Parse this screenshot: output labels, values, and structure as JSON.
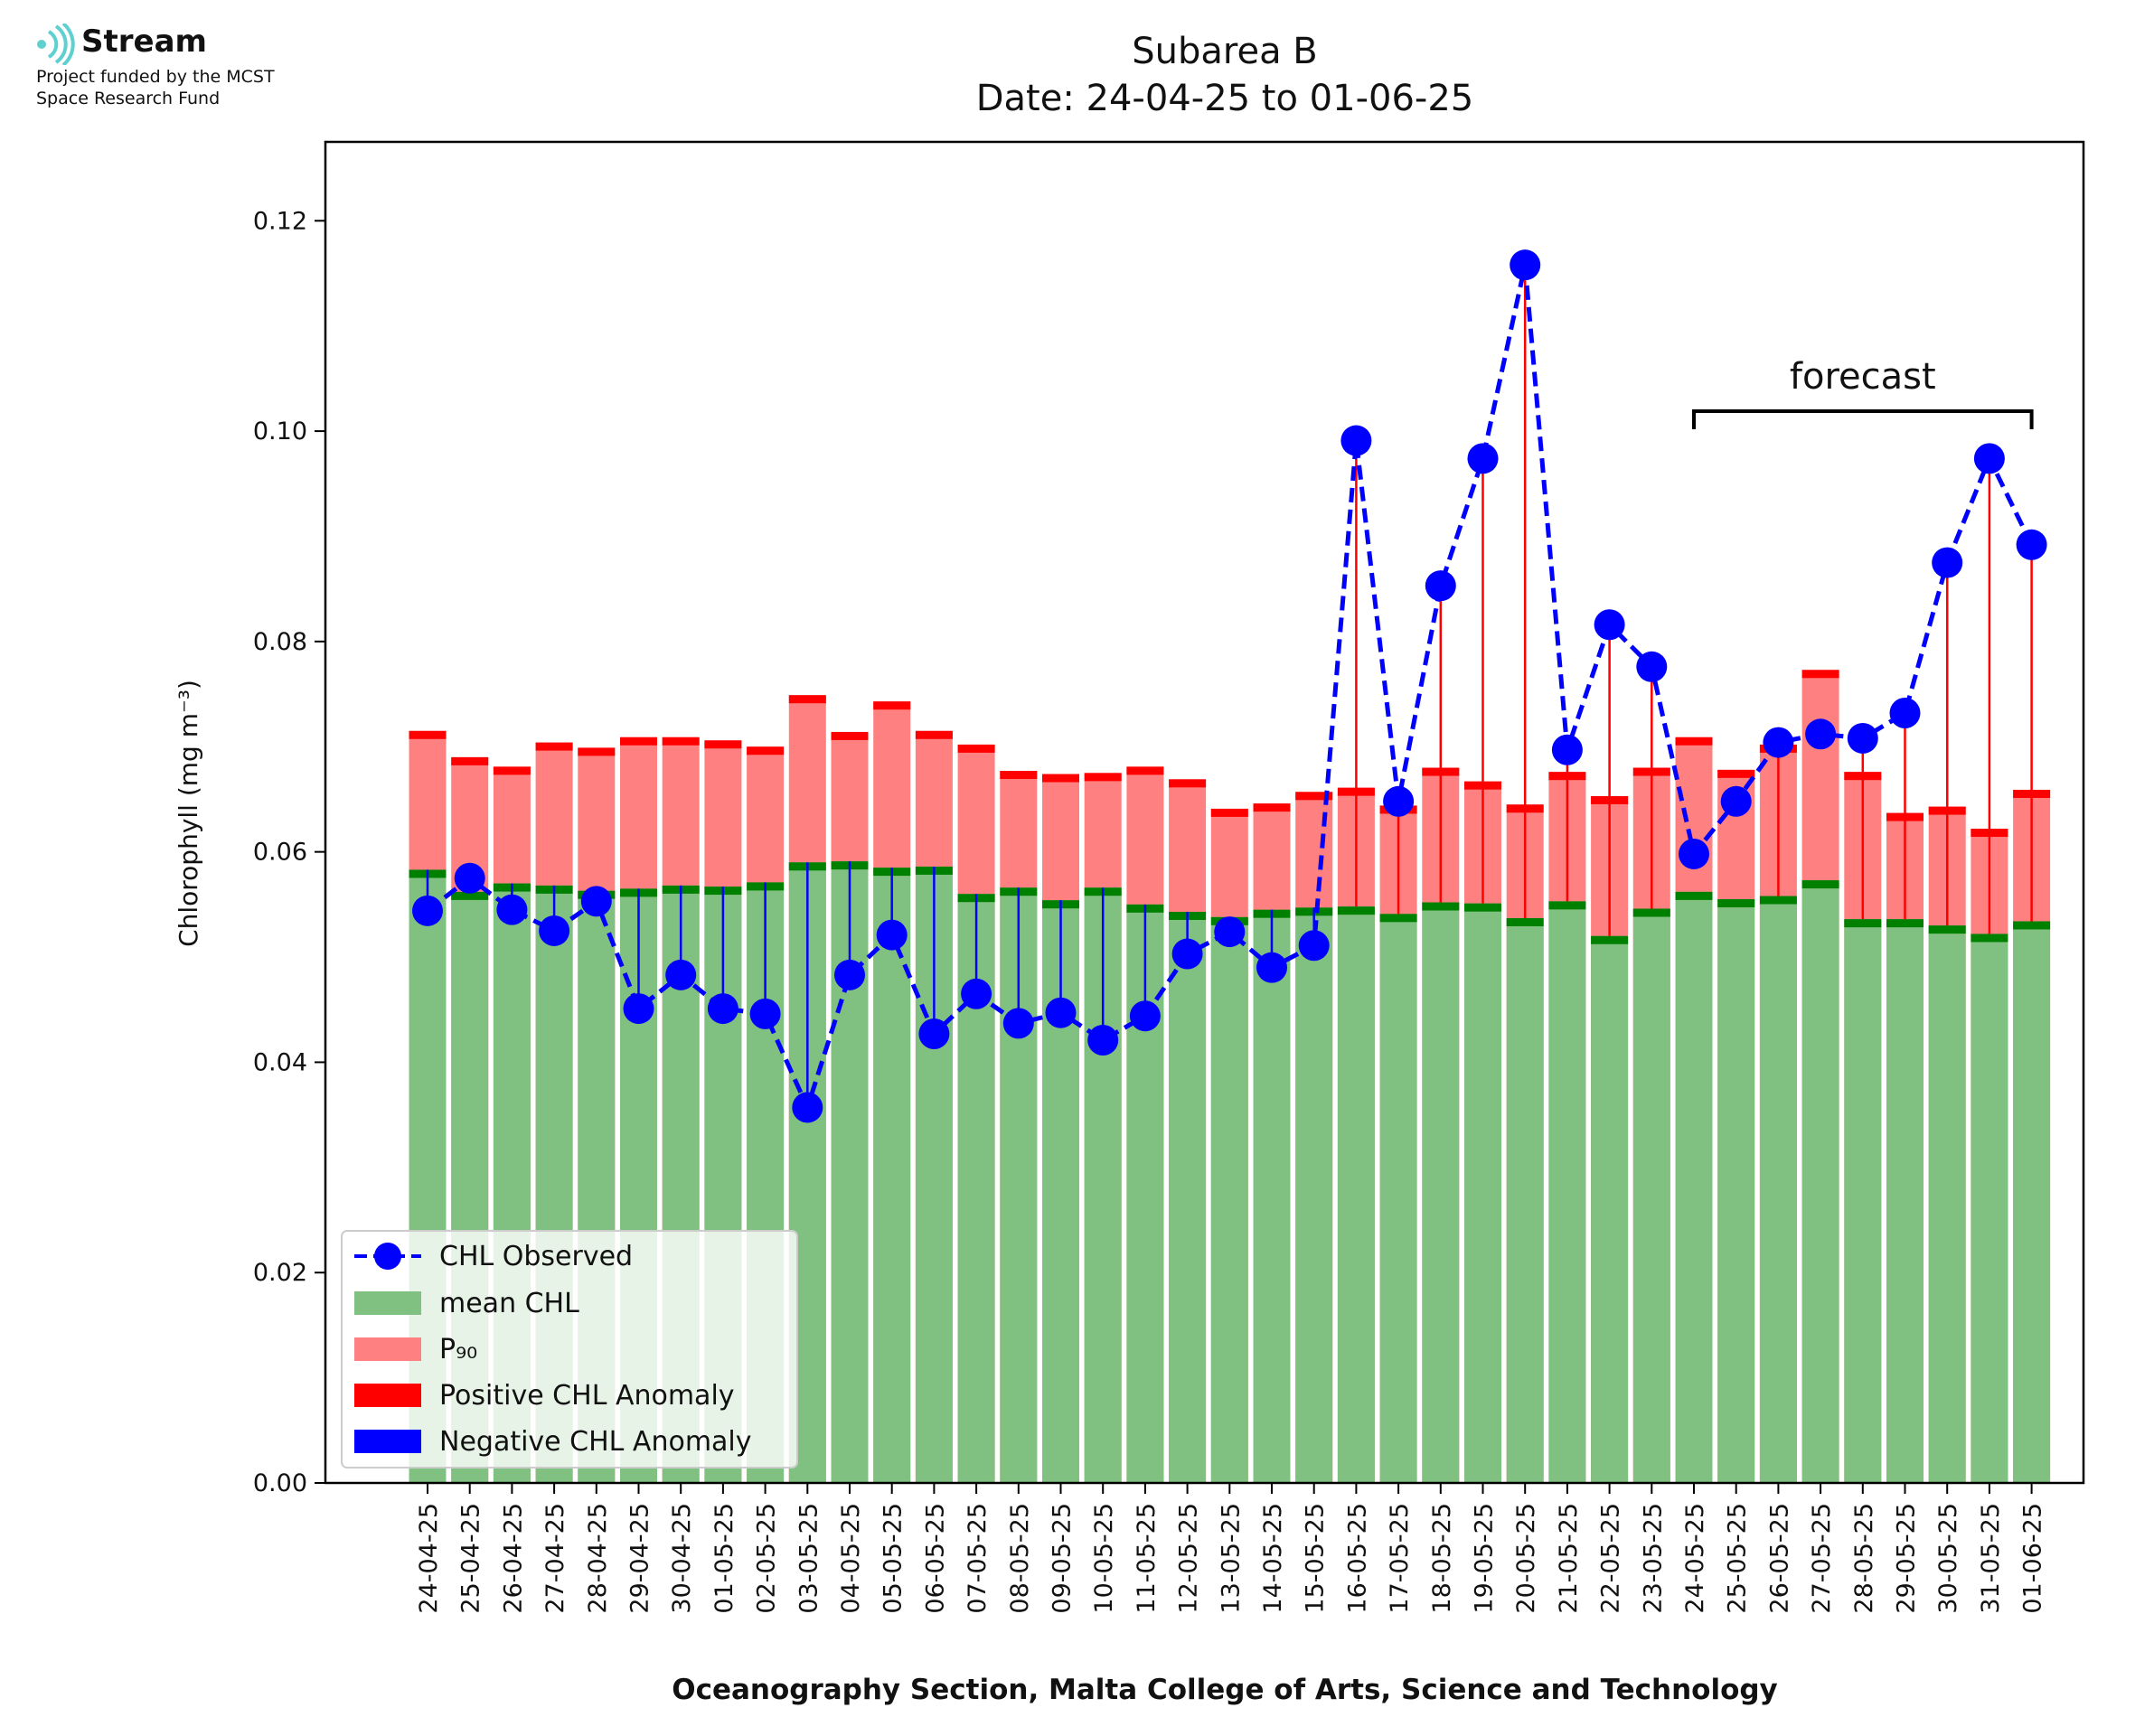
{
  "logo": {
    "name": "Stream",
    "line1": "Project funded by the MCST",
    "line2": "Space Research Fund"
  },
  "colors": {
    "observed": "#0000ff",
    "mean": "#80c080",
    "mean_cap": "#008000",
    "p90": "#ff8080",
    "positive": "#ff0000",
    "negative": "#0000ff"
  },
  "chart_data": {
    "type": "bar",
    "title": "Subarea B",
    "subtitle": "Date: 24-04-25 to 01-06-25",
    "xlabel": "Oceanography Section, Malta College of Arts, Science and Technology",
    "ylabel": "Chlorophyll (mg m⁻³)",
    "ylim": [
      0,
      0.1275
    ],
    "yticks": [
      "0.00",
      "0.02",
      "0.04",
      "0.06",
      "0.08",
      "0.10",
      "0.12"
    ],
    "grid": false,
    "legend_position": "lower-left",
    "categories": [
      "24-04-25",
      "25-04-25",
      "26-04-25",
      "27-04-25",
      "28-04-25",
      "29-04-25",
      "30-04-25",
      "01-05-25",
      "02-05-25",
      "03-05-25",
      "04-05-25",
      "05-05-25",
      "06-05-25",
      "07-05-25",
      "08-05-25",
      "09-05-25",
      "10-05-25",
      "11-05-25",
      "12-05-25",
      "13-05-25",
      "14-05-25",
      "15-05-25",
      "16-05-25",
      "17-05-25",
      "18-05-25",
      "19-05-25",
      "20-05-25",
      "21-05-25",
      "22-05-25",
      "23-05-25",
      "24-05-25",
      "25-05-25",
      "26-05-25",
      "27-05-25",
      "28-05-25",
      "29-05-25",
      "30-05-25",
      "31-05-25",
      "01-06-25"
    ],
    "series": [
      {
        "name": "CHL Observed",
        "style": "line-dashed-markers",
        "values": [
          0.0544,
          0.0575,
          0.0545,
          0.0525,
          0.0553,
          0.0451,
          0.0483,
          0.0451,
          0.0446,
          0.0357,
          0.0483,
          0.0521,
          0.0427,
          0.0465,
          0.0437,
          0.0447,
          0.0421,
          0.0444,
          0.0503,
          0.0524,
          0.049,
          0.0511,
          0.0991,
          0.0648,
          0.0853,
          0.0974,
          0.1158,
          0.0697,
          0.0816,
          0.0776,
          0.0598,
          0.0648,
          0.0704,
          0.0712,
          0.0708,
          0.0732,
          0.0875,
          0.0974,
          0.0892
        ]
      },
      {
        "name": "mean CHL",
        "style": "bar",
        "values": [
          0.0583,
          0.0562,
          0.057,
          0.0568,
          0.0563,
          0.0565,
          0.0568,
          0.0567,
          0.0571,
          0.059,
          0.0591,
          0.0585,
          0.0586,
          0.056,
          0.0566,
          0.0554,
          0.0566,
          0.055,
          0.0543,
          0.0538,
          0.0545,
          0.0547,
          0.0548,
          0.0541,
          0.0552,
          0.0551,
          0.0537,
          0.0553,
          0.052,
          0.0546,
          0.0562,
          0.0555,
          0.0558,
          0.0573,
          0.0536,
          0.0536,
          0.053,
          0.0522,
          0.0534
        ]
      },
      {
        "name": "P₉₀",
        "style": "bar",
        "values": [
          0.0715,
          0.069,
          0.0681,
          0.0704,
          0.0699,
          0.0709,
          0.0709,
          0.0706,
          0.07,
          0.0749,
          0.0714,
          0.0743,
          0.0715,
          0.0702,
          0.0677,
          0.0674,
          0.0675,
          0.0681,
          0.0669,
          0.0641,
          0.0646,
          0.0657,
          0.0661,
          0.0644,
          0.068,
          0.0667,
          0.0645,
          0.0676,
          0.0653,
          0.068,
          0.0709,
          0.0678,
          0.0702,
          0.0773,
          0.0676,
          0.0637,
          0.0643,
          0.0622,
          0.0659
        ]
      },
      {
        "name": "Positive CHL Anomaly",
        "style": "stem"
      },
      {
        "name": "Negative CHL Anomaly",
        "style": "stem"
      }
    ],
    "annotations": [
      {
        "text": "forecast",
        "from": "24-05-25",
        "to": "01-06-25"
      }
    ]
  }
}
